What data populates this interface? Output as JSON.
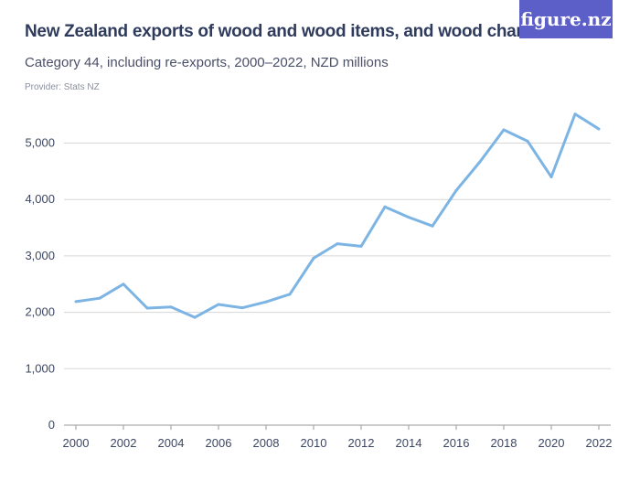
{
  "logo": "figure.nz",
  "chart_data": {
    "type": "line",
    "title": "New Zealand exports of wood and wood items, and wood charcoal",
    "subtitle": "Category 44, including re-exports, 2000–2022, NZD millions",
    "provider": "Provider: Stats NZ",
    "xlabel": "",
    "ylabel": "",
    "x": [
      2000,
      2001,
      2002,
      2003,
      2004,
      2005,
      2006,
      2007,
      2008,
      2009,
      2010,
      2011,
      2012,
      2013,
      2014,
      2015,
      2016,
      2017,
      2018,
      2019,
      2020,
      2021,
      2022
    ],
    "values": [
      2190,
      2250,
      2500,
      2075,
      2095,
      1910,
      2140,
      2080,
      2185,
      2320,
      2960,
      3215,
      3170,
      3870,
      3685,
      3530,
      4160,
      4670,
      5235,
      5035,
      4400,
      5515,
      5250
    ],
    "ylim": [
      0,
      5500
    ],
    "xlim": [
      2000,
      2022
    ],
    "yticks": [
      "0",
      "1,000",
      "2,000",
      "3,000",
      "4,000",
      "5,000"
    ],
    "xticks": [
      "2000",
      "2002",
      "2004",
      "2006",
      "2008",
      "2010",
      "2012",
      "2014",
      "2016",
      "2018",
      "2020",
      "2022"
    ],
    "grid": true,
    "line_color": "#7cb4e4"
  }
}
